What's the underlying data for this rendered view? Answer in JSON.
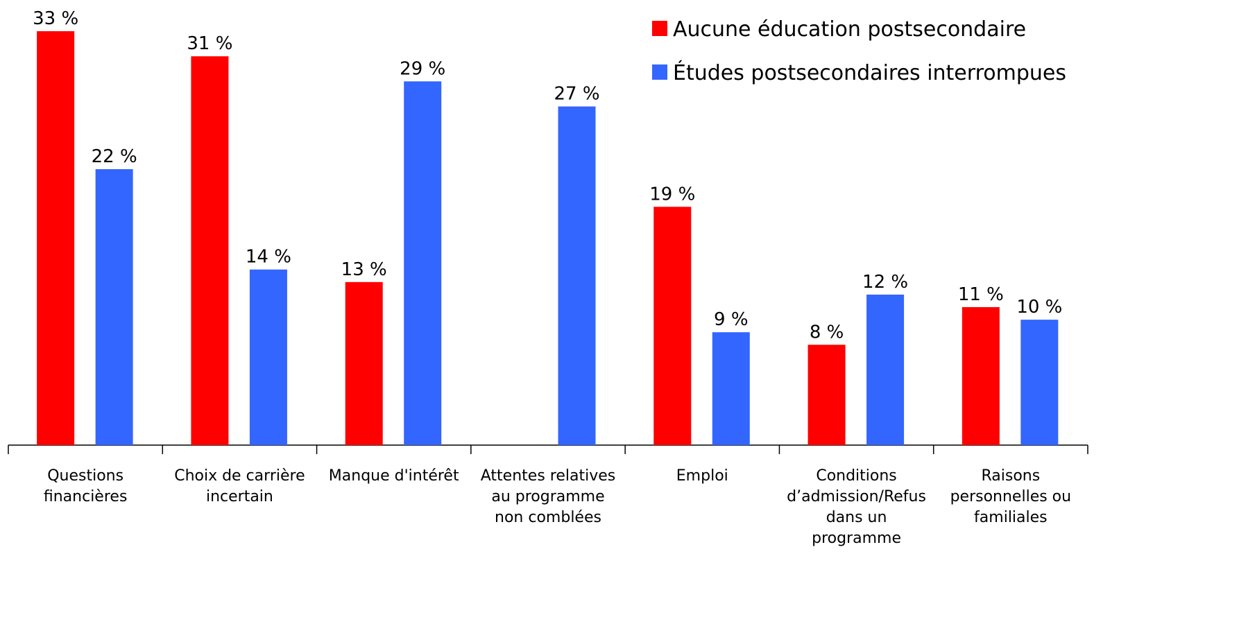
{
  "chart_data": {
    "type": "bar",
    "categories": [
      "Questions\nfinancières",
      "Choix de carrière\nincertain",
      "Manque d'intérêt",
      "Attentes relatives\nau programme\nnon comblées",
      "Emploi",
      "Conditions\nd’admission/Refus\ndans un\nprogramme",
      "Raisons\npersonnelles ou\nfamiliales"
    ],
    "series": [
      {
        "name": "Aucune éducation postsecondaire",
        "color": "#ff0000",
        "values": [
          33,
          31,
          13,
          null,
          19,
          8,
          11
        ],
        "value_labels": [
          "33 %",
          "31 %",
          "13 %",
          null,
          "19 %",
          "8 %",
          "11 %"
        ]
      },
      {
        "name": "Études postsecondaires interrompues",
        "color": "#3366ff",
        "values": [
          22,
          14,
          29,
          27,
          9,
          12,
          10
        ],
        "value_labels": [
          "22 %",
          "14 %",
          "29 %",
          "27 %",
          "9 %",
          "12 %",
          "10 %"
        ]
      }
    ],
    "legend": "top-right"
  }
}
